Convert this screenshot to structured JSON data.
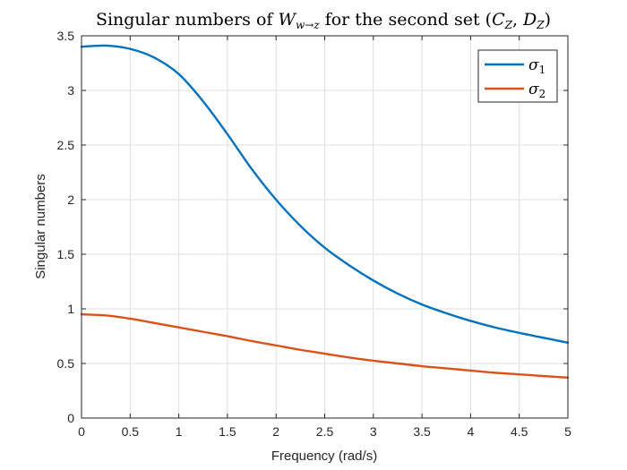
{
  "chart_data": {
    "type": "line",
    "title": "Singular numbers of W_{w→z} for the second set (C_Z, D_Z)",
    "xlabel": "Frequency (rad/s)",
    "ylabel": "Singular numbers",
    "xlim": [
      0,
      5
    ],
    "ylim": [
      0,
      3.5
    ],
    "xticks": [
      0,
      0.5,
      1,
      1.5,
      2,
      2.5,
      3,
      3.5,
      4,
      4.5,
      5
    ],
    "xtick_labels": [
      "0",
      "0.5",
      "1",
      "1.5",
      "2",
      "2.5",
      "3",
      "3.5",
      "4",
      "4.5",
      "5"
    ],
    "yticks": [
      0,
      0.5,
      1,
      1.5,
      2,
      2.5,
      3,
      3.5
    ],
    "ytick_labels": [
      "0",
      "0.5",
      "1",
      "1.5",
      "2",
      "2.5",
      "3",
      "3.5"
    ],
    "grid": true,
    "legend_position": "top-right",
    "x": [
      0,
      0.25,
      0.5,
      0.75,
      1,
      1.25,
      1.5,
      1.75,
      2,
      2.25,
      2.5,
      2.75,
      3,
      3.25,
      3.5,
      3.75,
      4,
      4.25,
      4.5,
      4.75,
      5
    ],
    "series": [
      {
        "name": "σ1",
        "color": "#0072BD",
        "values": [
          3.4,
          3.41,
          3.38,
          3.3,
          3.15,
          2.9,
          2.6,
          2.28,
          2.0,
          1.76,
          1.56,
          1.4,
          1.26,
          1.14,
          1.04,
          0.96,
          0.89,
          0.83,
          0.78,
          0.735,
          0.69
        ]
      },
      {
        "name": "σ2",
        "color": "#D95319",
        "values": [
          0.95,
          0.94,
          0.91,
          0.87,
          0.83,
          0.79,
          0.75,
          0.705,
          0.665,
          0.625,
          0.59,
          0.555,
          0.525,
          0.5,
          0.475,
          0.455,
          0.435,
          0.415,
          0.4,
          0.385,
          0.37
        ]
      }
    ]
  }
}
